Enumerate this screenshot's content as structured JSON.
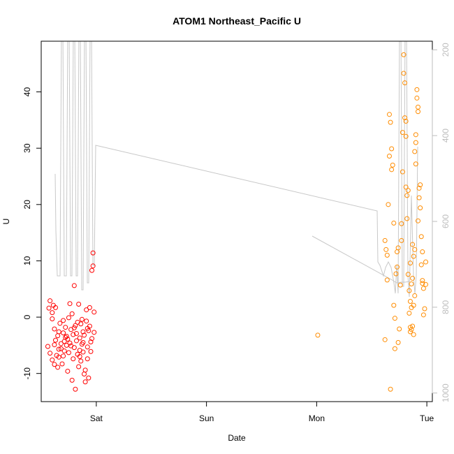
{
  "chart_data": {
    "type": "scatter",
    "title": "ATOM1 Northeast_Pacific U",
    "xlabel": "Date",
    "ylabel": "U",
    "x_ticks": [
      {
        "label": "Sat",
        "day": 1.0
      },
      {
        "label": "Sun",
        "day": 2.0
      },
      {
        "label": "Mon",
        "day": 3.0
      },
      {
        "label": "Tue",
        "day": 4.0
      }
    ],
    "xlim_days": [
      0.5,
      4.05
    ],
    "ylim": [
      -15,
      49
    ],
    "y_ticks": [
      -10,
      0,
      10,
      20,
      30,
      40
    ],
    "secondary_y": {
      "ticks": [
        200,
        400,
        600,
        800,
        1000
      ],
      "range_bottom_to_top": [
        1020,
        180
      ],
      "color": "#bdbdbd"
    },
    "grid": false,
    "series": [
      {
        "color": "#ff0000",
        "marker": "circle-open",
        "points": [
          [
            0.56,
            -5.2
          ],
          [
            0.57,
            1.6
          ],
          [
            0.58,
            2.9
          ],
          [
            0.58,
            -6.4
          ],
          [
            0.6,
            -0.3
          ],
          [
            0.6,
            0.8
          ],
          [
            0.6,
            -7.6
          ],
          [
            0.61,
            2.1
          ],
          [
            0.62,
            -2.1
          ],
          [
            0.62,
            -8.4
          ],
          [
            0.63,
            -4.1
          ],
          [
            0.63,
            1.7
          ],
          [
            0.64,
            -6.8
          ],
          [
            0.65,
            -8.9
          ],
          [
            0.65,
            -3.3
          ],
          [
            0.66,
            -2.6
          ],
          [
            0.66,
            -7.1
          ],
          [
            0.67,
            -1.1
          ],
          [
            0.68,
            -5.6
          ],
          [
            0.68,
            -4.7
          ],
          [
            0.69,
            -8.3
          ],
          [
            0.7,
            -0.6
          ],
          [
            0.7,
            -2.8
          ],
          [
            0.71,
            -4.3
          ],
          [
            0.71,
            -6.0
          ],
          [
            0.72,
            -3.6
          ],
          [
            0.72,
            -1.8
          ],
          [
            0.73,
            -5.0
          ],
          [
            0.74,
            -9.6
          ],
          [
            0.74,
            -3.9
          ],
          [
            0.75,
            -0.1
          ],
          [
            0.75,
            -6.3
          ],
          [
            0.76,
            2.4
          ],
          [
            0.76,
            -4.6
          ],
          [
            0.77,
            -2.2
          ],
          [
            0.78,
            -11.2
          ],
          [
            0.78,
            0.6
          ],
          [
            0.79,
            -3.1
          ],
          [
            0.79,
            -7.4
          ],
          [
            0.8,
            -5.4
          ],
          [
            0.8,
            5.6
          ],
          [
            0.81,
            -1.5
          ],
          [
            0.81,
            -12.8
          ],
          [
            0.82,
            -4.2
          ],
          [
            0.82,
            -2.9
          ],
          [
            0.83,
            -6.6
          ],
          [
            0.83,
            -0.9
          ],
          [
            0.84,
            -8.8
          ],
          [
            0.84,
            2.3
          ],
          [
            0.85,
            -3.7
          ],
          [
            0.85,
            -5.9
          ],
          [
            0.86,
            -1.2
          ],
          [
            0.86,
            -7.8
          ],
          [
            0.87,
            -4.8
          ],
          [
            0.87,
            -0.4
          ],
          [
            0.88,
            -2.6
          ],
          [
            0.88,
            -6.2
          ],
          [
            0.89,
            -10.1
          ],
          [
            0.89,
            -3.2
          ],
          [
            0.9,
            -9.4
          ],
          [
            0.9,
            -11.5
          ],
          [
            0.91,
            -0.7
          ],
          [
            0.91,
            1.3
          ],
          [
            0.92,
            -5.3
          ],
          [
            0.92,
            -7.4
          ],
          [
            0.93,
            -2.4
          ],
          [
            0.93,
            -10.8
          ],
          [
            0.94,
            1.7
          ],
          [
            0.94,
            -1.6
          ],
          [
            0.95,
            -4.4
          ],
          [
            0.96,
            8.3
          ],
          [
            0.96,
            -3.8
          ],
          [
            0.97,
            11.4
          ],
          [
            0.97,
            9.1
          ],
          [
            0.98,
            -2.7
          ],
          [
            0.98,
            0.9
          ],
          [
            0.62,
            -4.9
          ],
          [
            0.66,
            -5.7
          ],
          [
            0.7,
            -6.9
          ],
          [
            0.73,
            -3.4
          ],
          [
            0.77,
            -5.1
          ],
          [
            0.8,
            -1.9
          ],
          [
            0.85,
            -7.0
          ],
          [
            0.88,
            -4.5
          ],
          [
            0.92,
            -2.0
          ],
          [
            0.95,
            -6.1
          ]
        ]
      },
      {
        "color": "#ff8c00",
        "marker": "circle-open",
        "points": [
          [
            3.01,
            -3.2
          ],
          [
            3.62,
            -4.0
          ],
          [
            3.62,
            13.6
          ],
          [
            3.63,
            12.0
          ],
          [
            3.64,
            6.6
          ],
          [
            3.64,
            11.0
          ],
          [
            3.65,
            20.0
          ],
          [
            3.66,
            28.6
          ],
          [
            3.66,
            36.0
          ],
          [
            3.67,
            34.6
          ],
          [
            3.68,
            26.2
          ],
          [
            3.68,
            29.9
          ],
          [
            3.69,
            27.0
          ],
          [
            3.7,
            16.7
          ],
          [
            3.7,
            2.1
          ],
          [
            3.71,
            -5.6
          ],
          [
            3.71,
            -0.2
          ],
          [
            3.72,
            7.7
          ],
          [
            3.73,
            8.9
          ],
          [
            3.73,
            11.6
          ],
          [
            3.74,
            -4.5
          ],
          [
            3.74,
            12.3
          ],
          [
            3.75,
            -2.1
          ],
          [
            3.76,
            5.7
          ],
          [
            3.77,
            16.6
          ],
          [
            3.77,
            13.6
          ],
          [
            3.78,
            25.8
          ],
          [
            3.78,
            32.8
          ],
          [
            3.79,
            46.6
          ],
          [
            3.79,
            43.3
          ],
          [
            3.8,
            41.6
          ],
          [
            3.8,
            35.4
          ],
          [
            3.81,
            34.8
          ],
          [
            3.81,
            32.1
          ],
          [
            3.82,
            21.6
          ],
          [
            3.82,
            17.5
          ],
          [
            3.83,
            22.5
          ],
          [
            3.83,
            7.6
          ],
          [
            3.84,
            4.7
          ],
          [
            3.84,
            0.7
          ],
          [
            3.85,
            -1.8
          ],
          [
            3.85,
            2.8
          ],
          [
            3.86,
            1.7
          ],
          [
            3.86,
            -2.2
          ],
          [
            3.87,
            6.9
          ],
          [
            3.87,
            12.9
          ],
          [
            3.88,
            10.8
          ],
          [
            3.88,
            -3.1
          ],
          [
            3.89,
            3.8
          ],
          [
            3.89,
            29.4
          ],
          [
            3.9,
            32.4
          ],
          [
            3.9,
            27.2
          ],
          [
            3.91,
            40.4
          ],
          [
            3.91,
            38.9
          ],
          [
            3.92,
            37.3
          ],
          [
            3.92,
            36.5
          ],
          [
            3.93,
            22.9
          ],
          [
            3.93,
            21.2
          ],
          [
            3.94,
            19.4
          ],
          [
            3.95,
            14.3
          ],
          [
            3.95,
            9.3
          ],
          [
            3.96,
            11.6
          ],
          [
            3.96,
            6.0
          ],
          [
            3.97,
            5.1
          ],
          [
            3.97,
            0.4
          ],
          [
            3.98,
            1.5
          ],
          [
            3.99,
            9.8
          ],
          [
            3.99,
            5.8
          ],
          [
            3.85,
            -2.6
          ],
          [
            3.88,
            2.1
          ],
          [
            3.86,
            5.9
          ],
          [
            3.92,
            17.1
          ],
          [
            3.89,
            12.0
          ],
          [
            3.94,
            23.5
          ],
          [
            3.9,
            31.0
          ],
          [
            3.96,
            6.5
          ],
          [
            3.87,
            -1.6
          ],
          [
            3.81,
            23.1
          ],
          [
            3.85,
            9.6
          ],
          [
            3.67,
            -12.8
          ]
        ]
      }
    ]
  }
}
